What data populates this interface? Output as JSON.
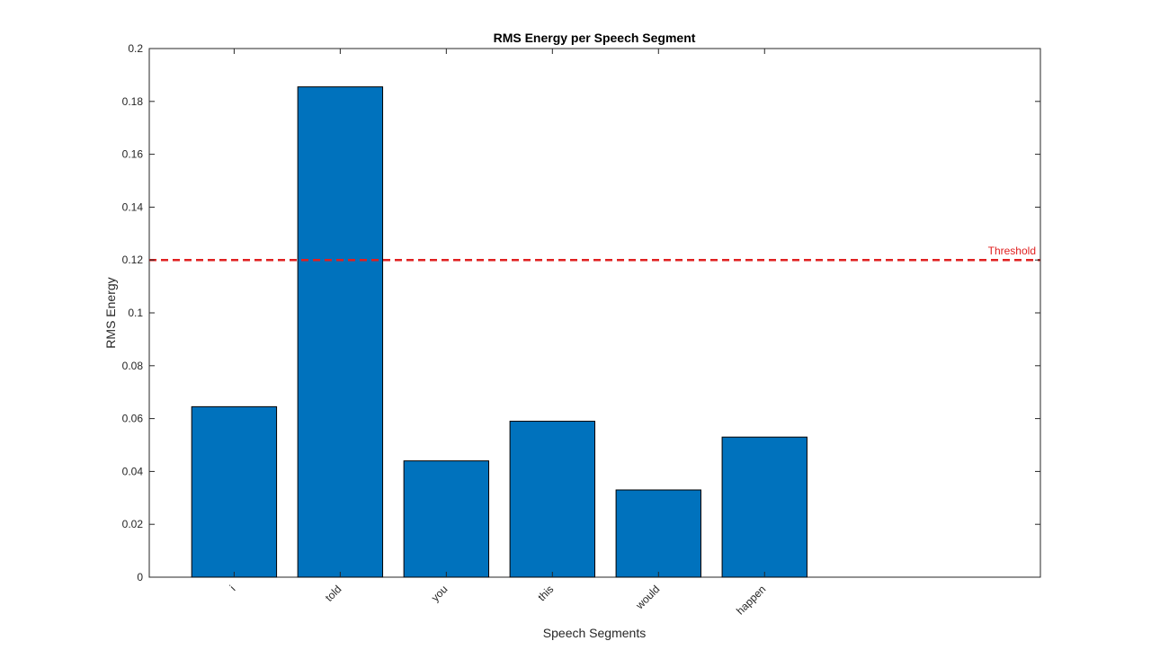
{
  "chart_data": {
    "type": "bar",
    "title": "RMS Energy per Speech Segment",
    "xlabel": "Speech Segments",
    "ylabel": "RMS Energy",
    "categories": [
      "i",
      "told",
      "you",
      "this",
      "would",
      "happen"
    ],
    "values": [
      0.0645,
      0.1855,
      0.044,
      0.059,
      0.033,
      0.053
    ],
    "ylim": [
      0,
      0.2
    ],
    "yticks": [
      "0",
      "0.02",
      "0.04",
      "0.06",
      "0.08",
      "0.1",
      "0.12",
      "0.14",
      "0.16",
      "0.18",
      "0.2"
    ],
    "xlim": [
      0.2,
      8.6
    ],
    "threshold": {
      "value": 0.12,
      "label": "Threshold",
      "color": "#e02020"
    },
    "bar_color": "#0072BD",
    "grid": false
  }
}
